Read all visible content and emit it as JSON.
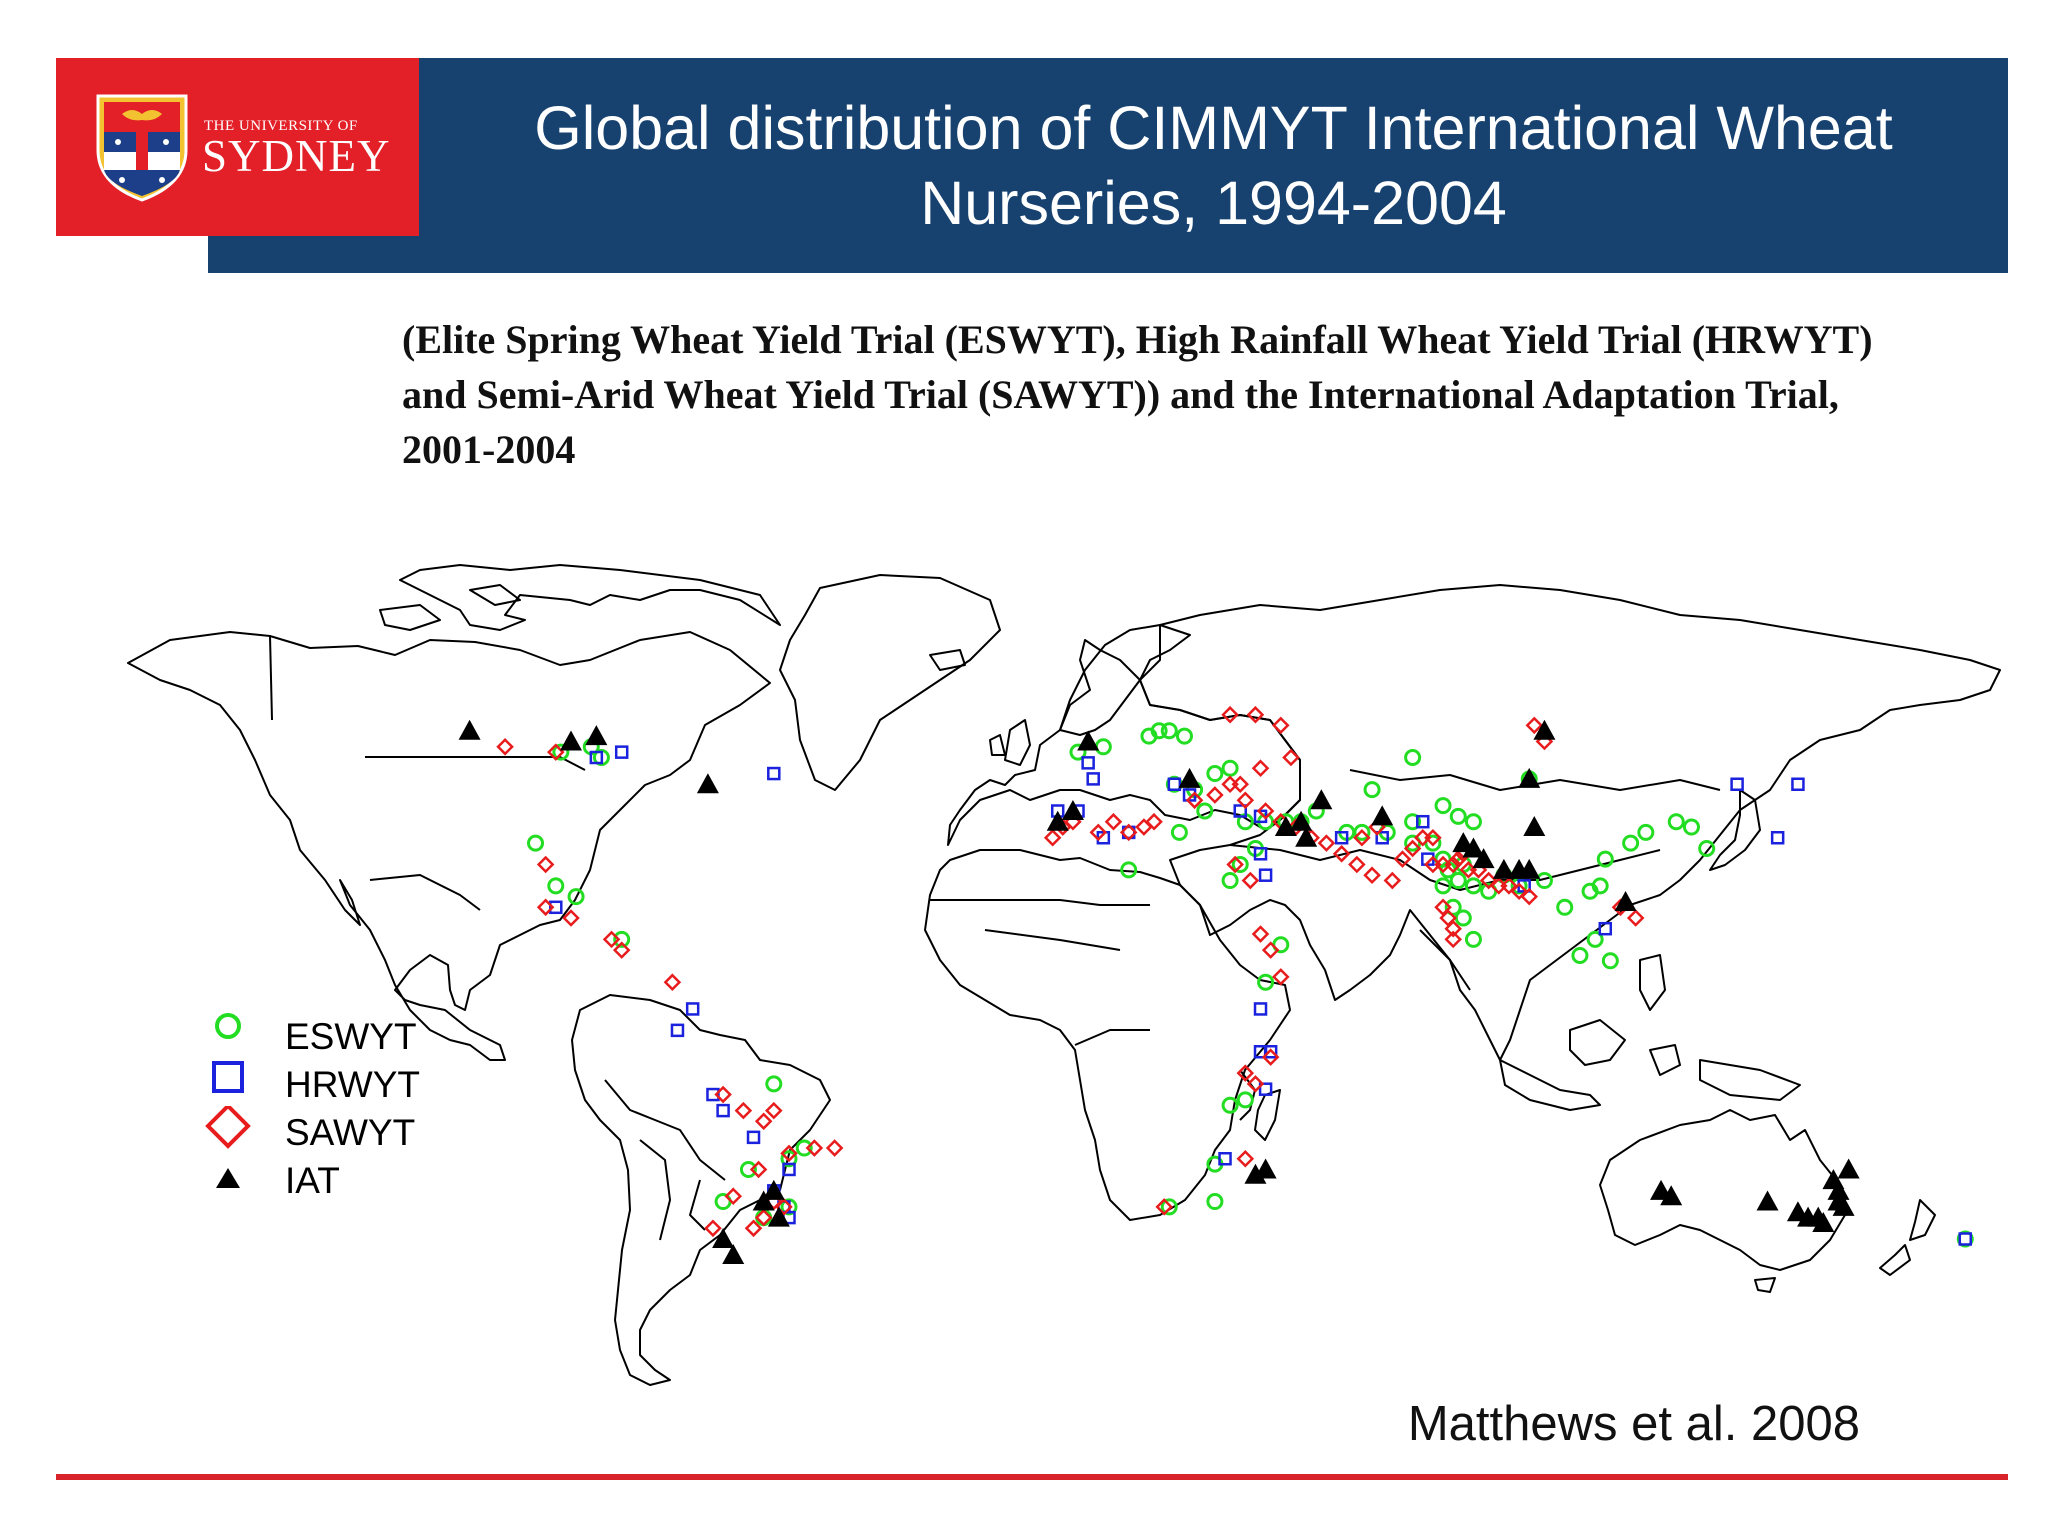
{
  "header": {
    "title": "Global distribution of CIMMYT International Wheat Nurseries, 1994-2004",
    "logo": {
      "top_line": "THE UNIVERSITY OF",
      "bottom_line": "SYDNEY",
      "colors": {
        "red": "#e32028",
        "gold": "#f2c230",
        "blue": "#1d3f8a"
      }
    },
    "bar_color": "#174270"
  },
  "subtitle": "(Elite Spring Wheat Yield Trial (ESWYT), High Rainfall Wheat Yield Trial (HRWYT) and Semi-Arid Wheat Yield Trial (SAWYT)) and the International Adaptation Trial, 2001-2004",
  "legend": [
    {
      "key": "ESWYT",
      "label": "ESWYT",
      "symbol": "circle",
      "color": "#22dd22"
    },
    {
      "key": "HRWYT",
      "label": "HRWYT",
      "symbol": "square",
      "color": "#1a22dd"
    },
    {
      "key": "SAWYT",
      "label": "SAWYT",
      "symbol": "diamond",
      "color": "#e81c1c"
    },
    {
      "key": "IAT",
      "label": "IAT",
      "symbol": "triangle",
      "color": "#000000"
    }
  ],
  "citation": "Matthews et al. 2008",
  "map": {
    "projection": "equirectangular",
    "sites": {
      "ESWYT": [
        [
          -102,
          51
        ],
        [
          -96,
          52
        ],
        [
          -94,
          50
        ],
        [
          -107,
          34
        ],
        [
          -103,
          26
        ],
        [
          -99,
          24
        ],
        [
          -90,
          16
        ],
        [
          -60,
          -11
        ],
        [
          -57,
          -25
        ],
        [
          -54,
          -23
        ],
        [
          -57,
          -34
        ],
        [
          -62,
          -36
        ],
        [
          -70,
          -33
        ],
        [
          -65,
          -27
        ],
        [
          0,
          51
        ],
        [
          5,
          52
        ],
        [
          14,
          54
        ],
        [
          16,
          55
        ],
        [
          18,
          55
        ],
        [
          21,
          54
        ],
        [
          19,
          45
        ],
        [
          23,
          44
        ],
        [
          27,
          47
        ],
        [
          30,
          48
        ],
        [
          25,
          40
        ],
        [
          33,
          38
        ],
        [
          37,
          38
        ],
        [
          35,
          33
        ],
        [
          32,
          30
        ],
        [
          30,
          27
        ],
        [
          41,
          38
        ],
        [
          44,
          38
        ],
        [
          47,
          40
        ],
        [
          53,
          36
        ],
        [
          56,
          36
        ],
        [
          61,
          36
        ],
        [
          66,
          38
        ],
        [
          72,
          41
        ],
        [
          75,
          39
        ],
        [
          78,
          38
        ],
        [
          66,
          34
        ],
        [
          70,
          34
        ],
        [
          72,
          31
        ],
        [
          73,
          29
        ],
        [
          76,
          30
        ],
        [
          72,
          26
        ],
        [
          75,
          27
        ],
        [
          78,
          26
        ],
        [
          74,
          22
        ],
        [
          76,
          20
        ],
        [
          78,
          16
        ],
        [
          81,
          25
        ],
        [
          84,
          28
        ],
        [
          87,
          26
        ],
        [
          92,
          27
        ],
        [
          96,
          22
        ],
        [
          101,
          25
        ],
        [
          103,
          26
        ],
        [
          104,
          31
        ],
        [
          109,
          34
        ],
        [
          112,
          36
        ],
        [
          118,
          38
        ],
        [
          121,
          37
        ],
        [
          124,
          33
        ],
        [
          102,
          16
        ],
        [
          99,
          13
        ],
        [
          105,
          12
        ],
        [
          89,
          46
        ],
        [
          20,
          36
        ],
        [
          10,
          29
        ],
        [
          37,
          8
        ],
        [
          40,
          15
        ],
        [
          33,
          -14
        ],
        [
          30,
          -15
        ],
        [
          27,
          -26
        ],
        [
          27,
          -33
        ],
        [
          18,
          -34
        ],
        [
          175,
          -40
        ],
        [
          58,
          44
        ],
        [
          66,
          50
        ]
      ],
      "HRWYT": [
        [
          -90,
          51
        ],
        [
          -60,
          47
        ],
        [
          -103,
          22
        ],
        [
          -79,
          -1
        ],
        [
          -76,
          3
        ],
        [
          -60,
          -31
        ],
        [
          -58,
          -34
        ],
        [
          -57,
          -36
        ],
        [
          -57,
          -27
        ],
        [
          -64,
          -21
        ],
        [
          -70,
          -16
        ],
        [
          -72,
          -13
        ],
        [
          -4,
          40
        ],
        [
          2,
          49
        ],
        [
          3,
          46
        ],
        [
          0,
          40
        ],
        [
          10,
          36
        ],
        [
          5,
          35
        ],
        [
          22,
          43
        ],
        [
          19,
          45
        ],
        [
          32,
          40
        ],
        [
          36,
          39
        ],
        [
          36,
          32
        ],
        [
          37,
          28
        ],
        [
          52,
          35
        ],
        [
          68,
          38
        ],
        [
          69,
          31
        ],
        [
          36,
          3
        ],
        [
          36,
          -5
        ],
        [
          38,
          -5
        ],
        [
          37,
          -12
        ],
        [
          29,
          -25
        ],
        [
          104,
          18
        ],
        [
          88,
          26
        ],
        [
          130,
          45
        ],
        [
          142,
          45
        ],
        [
          138,
          35
        ],
        [
          175,
          -40
        ],
        [
          -95,
          50
        ],
        [
          60,
          35
        ]
      ],
      "SAWYT": [
        [
          -113,
          52
        ],
        [
          -103,
          51
        ],
        [
          -105,
          30
        ],
        [
          -100,
          20
        ],
        [
          -105,
          22
        ],
        [
          -92,
          16
        ],
        [
          -90,
          14
        ],
        [
          -80,
          8
        ],
        [
          -70,
          -13
        ],
        [
          -66,
          -16
        ],
        [
          -60,
          -16
        ],
        [
          -62,
          -18
        ],
        [
          -57,
          -24
        ],
        [
          -48,
          -23
        ],
        [
          -52,
          -23
        ],
        [
          -63,
          -27
        ],
        [
          -60,
          -33
        ],
        [
          -58,
          -34
        ],
        [
          -62,
          -36
        ],
        [
          -64,
          -38
        ],
        [
          -68,
          -32
        ],
        [
          -72,
          -38
        ],
        [
          -5,
          35
        ],
        [
          -3,
          37
        ],
        [
          -1,
          38
        ],
        [
          4,
          36
        ],
        [
          7,
          38
        ],
        [
          10,
          36
        ],
        [
          13,
          37
        ],
        [
          15,
          38
        ],
        [
          23,
          42
        ],
        [
          27,
          43
        ],
        [
          30,
          45
        ],
        [
          33,
          42
        ],
        [
          37,
          40
        ],
        [
          40,
          38
        ],
        [
          43,
          37
        ],
        [
          46,
          35
        ],
        [
          49,
          34
        ],
        [
          52,
          32
        ],
        [
          55,
          30
        ],
        [
          58,
          28
        ],
        [
          62,
          27
        ],
        [
          64,
          31
        ],
        [
          66,
          33
        ],
        [
          68,
          35
        ],
        [
          70,
          35
        ],
        [
          70,
          30
        ],
        [
          72,
          30
        ],
        [
          74,
          30
        ],
        [
          75,
          31
        ],
        [
          76,
          32
        ],
        [
          77,
          29
        ],
        [
          79,
          29
        ],
        [
          81,
          27
        ],
        [
          83,
          26
        ],
        [
          85,
          26
        ],
        [
          87,
          25
        ],
        [
          89,
          24
        ],
        [
          72,
          22
        ],
        [
          73,
          20
        ],
        [
          74,
          18
        ],
        [
          74,
          16
        ],
        [
          32,
          45
        ],
        [
          36,
          48
        ],
        [
          35,
          58
        ],
        [
          42,
          50
        ],
        [
          30,
          58
        ],
        [
          40,
          56
        ],
        [
          33,
          -9
        ],
        [
          35,
          -11
        ],
        [
          38,
          -6
        ],
        [
          38,
          14
        ],
        [
          36,
          17
        ],
        [
          40,
          9
        ],
        [
          34,
          27
        ],
        [
          31,
          30
        ],
        [
          17,
          -34
        ],
        [
          33,
          -25
        ],
        [
          107,
          22
        ],
        [
          110,
          20
        ],
        [
          56,
          35
        ],
        [
          59,
          37
        ],
        [
          90,
          56
        ],
        [
          92,
          53
        ]
      ],
      "IAT": [
        [
          -120,
          55
        ],
        [
          -100,
          53
        ],
        [
          -95,
          54
        ],
        [
          -73,
          45
        ],
        [
          -60,
          -31
        ],
        [
          -62,
          -33
        ],
        [
          -59,
          -36
        ],
        [
          -70,
          -40
        ],
        [
          -68,
          -43
        ],
        [
          -4,
          38
        ],
        [
          -1,
          40
        ],
        [
          2,
          53
        ],
        [
          22,
          46
        ],
        [
          41,
          37
        ],
        [
          44,
          38
        ],
        [
          45,
          35
        ],
        [
          48,
          42
        ],
        [
          60,
          39
        ],
        [
          76,
          34
        ],
        [
          78,
          33
        ],
        [
          80,
          31
        ],
        [
          84,
          29
        ],
        [
          87,
          29
        ],
        [
          89,
          29
        ],
        [
          90,
          37
        ],
        [
          89,
          46
        ],
        [
          92,
          55
        ],
        [
          37,
          -27
        ],
        [
          35,
          -28
        ],
        [
          108,
          23
        ],
        [
          115,
          -31
        ],
        [
          117,
          -32
        ],
        [
          136,
          -33
        ],
        [
          142,
          -35
        ],
        [
          144,
          -36
        ],
        [
          146,
          -36
        ],
        [
          150,
          -31
        ],
        [
          150,
          -33
        ],
        [
          152,
          -27
        ],
        [
          149,
          -29
        ],
        [
          151,
          -34
        ],
        [
          147,
          -37
        ]
      ]
    }
  }
}
